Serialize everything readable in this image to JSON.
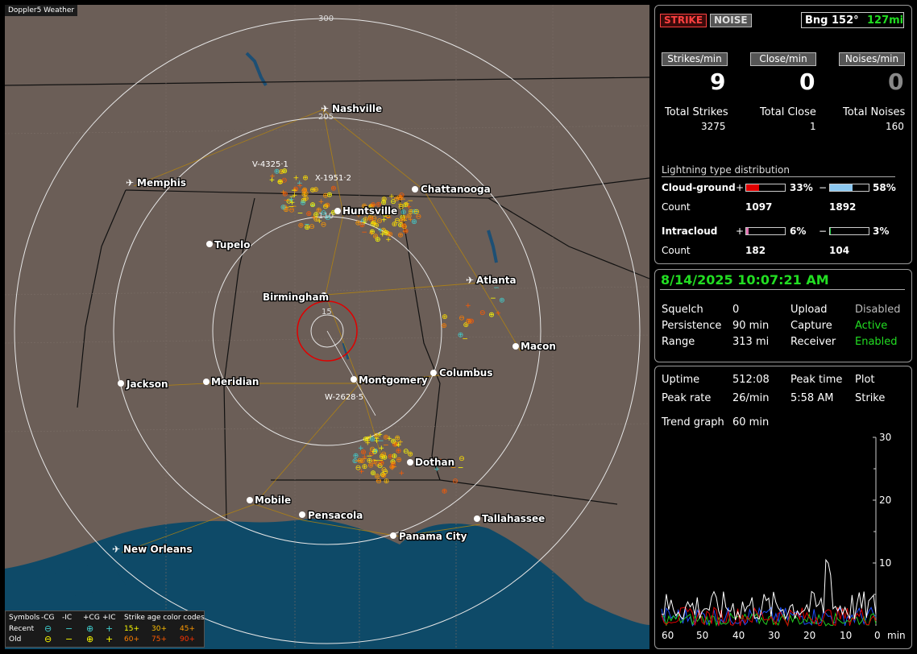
{
  "app_title": "Doppler5 Weather",
  "top_buttons": {
    "strike": "STRIKE",
    "noise": "NOISE"
  },
  "bearing": {
    "label": "Bng 152°",
    "distance": "127mi"
  },
  "rates": {
    "strikes_label": "Strikes/min",
    "strikes_value": "9",
    "close_label": "Close/min",
    "close_value": "0",
    "noises_label": "Noises/min",
    "noises_value": "0"
  },
  "totals": {
    "strikes_label": "Total Strikes",
    "strikes_value": "3275",
    "close_label": "Total Close",
    "close_value": "1",
    "noises_label": "Total Noises",
    "noises_value": "160"
  },
  "distribution": {
    "title": "Lightning type distribution",
    "cg_label": "Cloud-ground",
    "cg_pos_sign": "+",
    "cg_pos_pct": "33%",
    "cg_pos_fraction": 0.33,
    "cg_neg_sign": "−",
    "cg_neg_pct": "58%",
    "cg_neg_fraction": 0.58,
    "count_label": "Count",
    "cg_pos_count": "1097",
    "cg_neg_count": "1892",
    "ic_label": "Intracloud",
    "ic_pos_sign": "+",
    "ic_pos_pct": "6%",
    "ic_pos_fraction": 0.06,
    "ic_neg_sign": "−",
    "ic_neg_pct": "3%",
    "ic_neg_fraction": 0.03,
    "ic_pos_count": "182",
    "ic_neg_count": "104"
  },
  "status": {
    "datetime": "8/14/2025 10:07:21 AM",
    "squelch_label": "Squelch",
    "squelch_value": "0",
    "persistence_label": "Persistence",
    "persistence_value": "90 min",
    "range_label": "Range",
    "range_value": "313 mi",
    "upload_label": "Upload",
    "upload_value": "Disabled",
    "capture_label": "Capture",
    "capture_value": "Active",
    "receiver_label": "Receiver",
    "receiver_value": "Enabled"
  },
  "stats": {
    "uptime_label": "Uptime",
    "uptime_value": "512:08",
    "peak_time_label": "Peak time",
    "peak_time_value": "5:58 AM",
    "plot_label": "Plot",
    "plot_value": "Strike",
    "peak_rate_label": "Peak rate",
    "peak_rate_value": "26/min",
    "trend_label": "Trend graph",
    "trend_value": "60 min"
  },
  "trend_axis": {
    "y_ticks": [
      "30",
      "20",
      "10"
    ],
    "x_ticks": [
      "60",
      "50",
      "40",
      "30",
      "20",
      "10",
      "0"
    ],
    "x_unit": "min"
  },
  "colors": {
    "green": "#22dd22",
    "red": "#e00000",
    "blue": "#8cc8f0",
    "pink": "#e070b0",
    "orange": "#f08000",
    "yellow": "#ffff00"
  },
  "map": {
    "ring_labels": [
      "300",
      "205",
      "110",
      "15"
    ],
    "cities": [
      "Nashville",
      "Memphis",
      "Chattanooga",
      "Huntsville",
      "Tupelo",
      "Atlanta",
      "Birmingham",
      "Macon",
      "Jackson",
      "Meridian",
      "Montgomery",
      "Columbus",
      "Dothan",
      "Mobile",
      "Pensacola",
      "Tallahassee",
      "Panama City",
      "New Orleans"
    ],
    "storm_labels": [
      "V-4325·1",
      "X-1951·2",
      "W-2628·5"
    ]
  },
  "legend": {
    "symbols_label": "Symbols",
    "cg_neg": "-CG",
    "ic_neg": "-IC",
    "cg_pos": "+CG",
    "ic_pos": "+IC",
    "age_label": "Strike age color codes",
    "recent_label": "Recent",
    "old_label": "Old",
    "age_recent": [
      "15+",
      "30+",
      "45+"
    ],
    "age_old": [
      "60+",
      "75+",
      "90+"
    ]
  }
}
